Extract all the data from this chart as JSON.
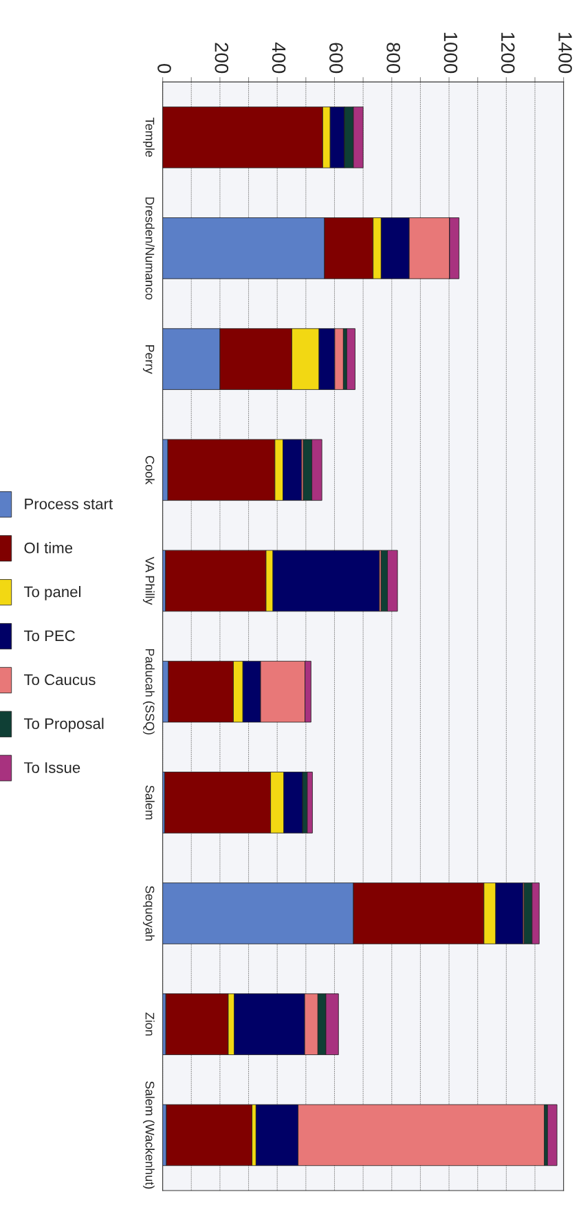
{
  "chart_data": {
    "type": "bar",
    "orientation": "horizontal",
    "stacked": true,
    "categories": [
      "Temple",
      "Dresden/Numanco",
      "Perry",
      "Cook",
      "VA Philly",
      "Paducah (SSQ)",
      "Salem",
      "Sequoyah",
      "Zion",
      "Salem (Wackenhut)"
    ],
    "series": [
      {
        "name": "Process start",
        "color": "#5b7fc7",
        "values": [
          0,
          565,
          200,
          18,
          10,
          20,
          7,
          666,
          11,
          13
        ]
      },
      {
        "name": "OI time",
        "color": "#800000",
        "values": [
          559,
          170,
          251,
          374,
          351,
          227,
          370,
          456,
          218,
          299
        ]
      },
      {
        "name": "To panel",
        "color": "#f2d813",
        "values": [
          26,
          28,
          95,
          28,
          24,
          33,
          46,
          41,
          21,
          14
        ]
      },
      {
        "name": "To PEC",
        "color": "#000066",
        "values": [
          50,
          98,
          55,
          65,
          372,
          62,
          66,
          95,
          246,
          147
        ]
      },
      {
        "name": "To Caucus",
        "color": "#e87878",
        "values": [
          0,
          141,
          30,
          6,
          6,
          155,
          0,
          4,
          46,
          860
        ]
      },
      {
        "name": "To Proposal",
        "color": "#0f3f35",
        "values": [
          31,
          0,
          12,
          30,
          22,
          0,
          16,
          28,
          28,
          11
        ]
      },
      {
        "name": "To Issue",
        "color": "#a8327f",
        "values": [
          34,
          33,
          29,
          35,
          35,
          21,
          18,
          25,
          44,
          33
        ]
      }
    ],
    "xlim": [
      0,
      1400
    ],
    "xticks": [
      0,
      {
        "value": 100,
        "label": null
      },
      200,
      {
        "value": 300,
        "label": null
      },
      400,
      {
        "value": 500,
        "label": null
      },
      600,
      {
        "value": 700,
        "label": null
      },
      800,
      {
        "value": 900,
        "label": null
      },
      1000,
      {
        "value": 1100,
        "label": null
      },
      1200,
      {
        "value": 1300,
        "label": null
      },
      1400
    ],
    "grid": "x",
    "legend": "left"
  }
}
